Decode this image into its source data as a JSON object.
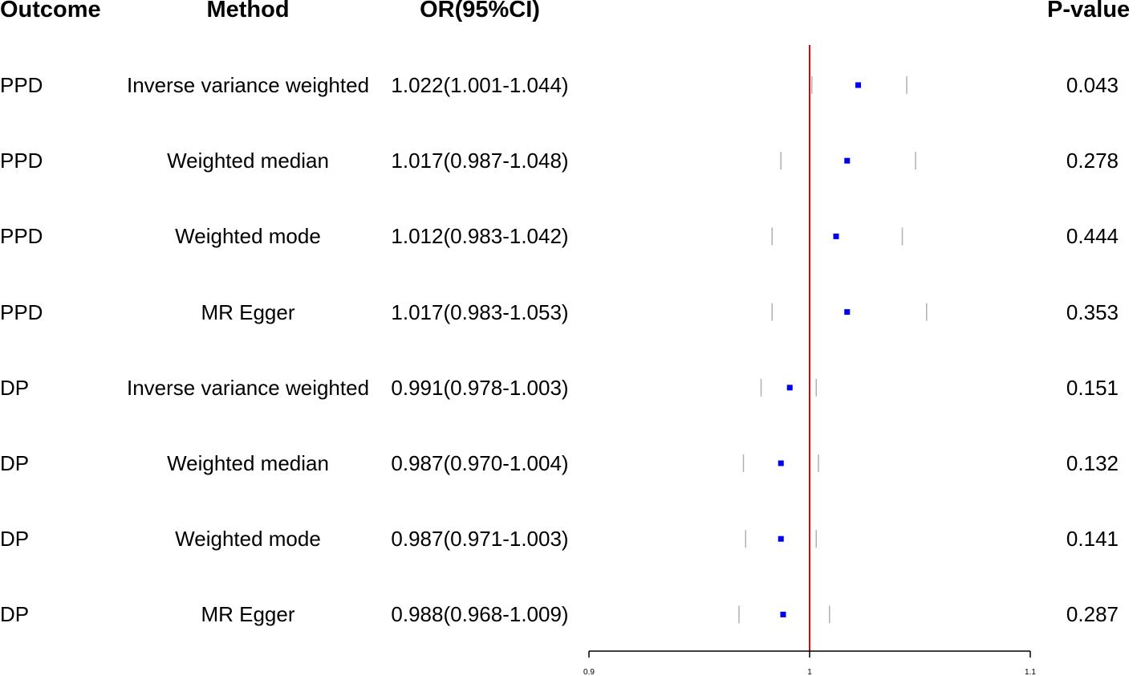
{
  "headers": {
    "outcome": "Outcome",
    "method": "Method",
    "or": "OR(95%CI)",
    "pvalue": "P-value"
  },
  "rows": [
    {
      "outcome": "PPD",
      "method": "Inverse variance weighted",
      "or_text": "1.022(1.001-1.044)",
      "p": "0.043"
    },
    {
      "outcome": "PPD",
      "method": "Weighted median",
      "or_text": "1.017(0.987-1.048)",
      "p": "0.278"
    },
    {
      "outcome": "PPD",
      "method": "Weighted mode",
      "or_text": "1.012(0.983-1.042)",
      "p": "0.444"
    },
    {
      "outcome": "PPD",
      "method": "MR Egger",
      "or_text": "1.017(0.983-1.053)",
      "p": "0.353"
    },
    {
      "outcome": "DP",
      "method": "Inverse variance weighted",
      "or_text": "0.991(0.978-1.003)",
      "p": "0.151"
    },
    {
      "outcome": "DP",
      "method": "Weighted median",
      "or_text": "0.987(0.970-1.004)",
      "p": "0.132"
    },
    {
      "outcome": "DP",
      "method": "Weighted mode",
      "or_text": "0.987(0.971-1.003)",
      "p": "0.141"
    },
    {
      "outcome": "DP",
      "method": "MR Egger",
      "or_text": "0.988(0.968-1.009)",
      "p": "0.287"
    }
  ],
  "chart_data": {
    "type": "scatter",
    "subtype": "forest",
    "categories": [
      "PPD Inverse variance weighted",
      "PPD Weighted median",
      "PPD Weighted mode",
      "PPD MR Egger",
      "DP Inverse variance weighted",
      "DP Weighted median",
      "DP Weighted mode",
      "DP MR Egger"
    ],
    "estimates": [
      1.022,
      1.017,
      1.012,
      1.017,
      0.991,
      0.987,
      0.987,
      0.988
    ],
    "lower": [
      1.001,
      0.987,
      0.983,
      0.983,
      0.978,
      0.97,
      0.971,
      0.968
    ],
    "upper": [
      1.044,
      1.048,
      1.042,
      1.053,
      1.003,
      1.004,
      1.003,
      1.009
    ],
    "reference_line": 1,
    "xlim": [
      0.9,
      1.1
    ],
    "x_ticks": [
      "0.9",
      "1",
      "1.1"
    ],
    "grid": false,
    "colors": {
      "point": "#0000ee",
      "ci": "#b0b0b0",
      "reference": "#e00000",
      "axis": "#000000"
    }
  }
}
